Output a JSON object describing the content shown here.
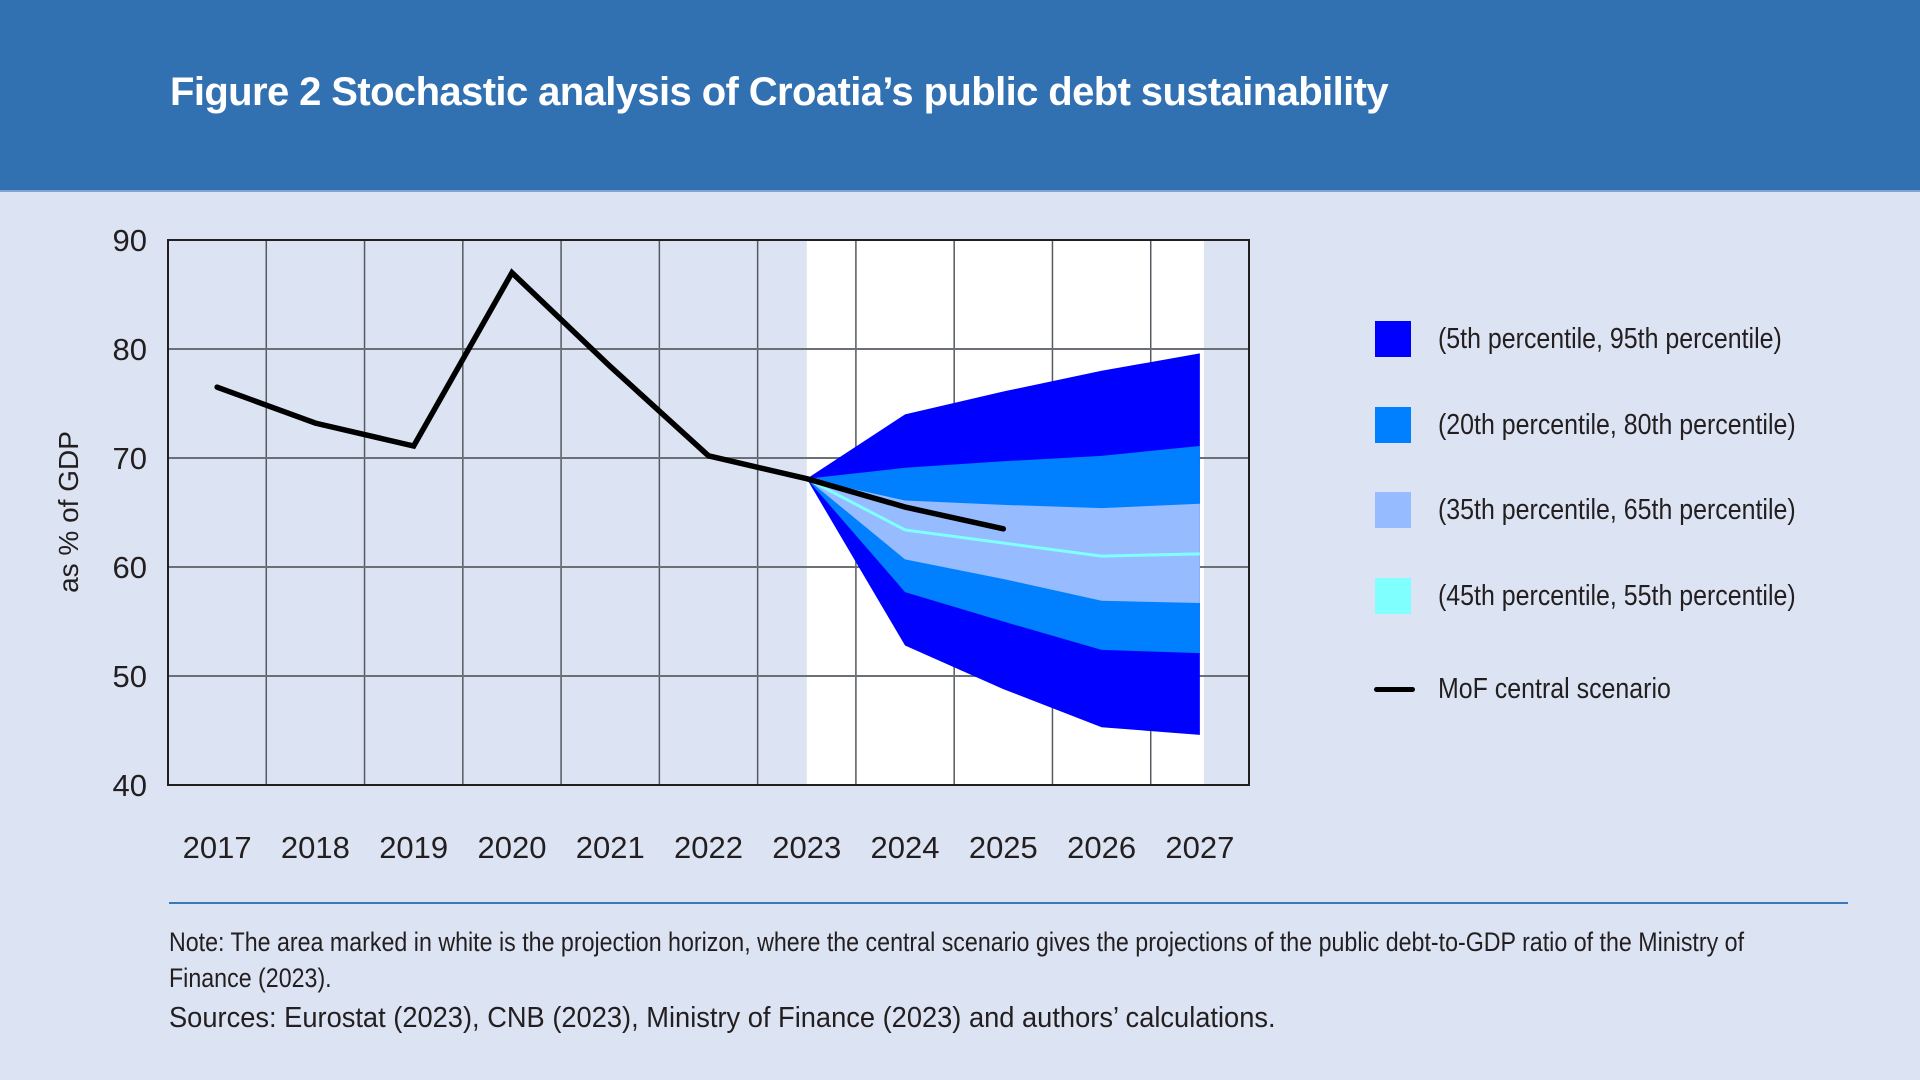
{
  "header": {
    "title": "Figure 2 Stochastic analysis of Croatia’s public debt sustainability"
  },
  "colors": {
    "header_bg": "#3170b1",
    "page_bg": "#dce3f2",
    "projection_bg": "#ffffff",
    "band_5_95": "#0000ff",
    "band_20_80": "#0080ff",
    "band_35_65": "#96bcff",
    "band_45_55": "#80ffff",
    "central": "#000000"
  },
  "chart_data": {
    "type": "area",
    "title": "Figure 2 Stochastic analysis of Croatia’s public debt sustainability",
    "xlabel": "",
    "ylabel": "as % of GDP",
    "ylim": [
      40,
      90
    ],
    "yticks": [
      90,
      80,
      70,
      60,
      50,
      40
    ],
    "categories": [
      "2017",
      "2018",
      "2019",
      "2020",
      "2021",
      "2022",
      "2023",
      "2024",
      "2025",
      "2026",
      "2027"
    ],
    "grid": true,
    "projection_horizon": [
      "2023",
      "2027"
    ],
    "legend_position": "right",
    "central_scenario": {
      "name": "MoF central scenario",
      "x": [
        "2017",
        "2018",
        "2019",
        "2020",
        "2021",
        "2022",
        "2023",
        "2024",
        "2025"
      ],
      "values": [
        76.5,
        73.2,
        71.1,
        87.0,
        78.4,
        70.2,
        68.1,
        65.5,
        63.5
      ]
    },
    "fan_x": [
      "2023",
      "2024",
      "2025",
      "2026",
      "2027"
    ],
    "percentiles": {
      "p5": [
        68.1,
        52.8,
        48.8,
        45.3,
        44.6
      ],
      "p20": [
        68.1,
        57.7,
        55.0,
        52.4,
        52.1
      ],
      "p35": [
        68.1,
        60.7,
        58.9,
        56.9,
        56.7
      ],
      "p45": [
        68.1,
        63.4,
        62.2,
        61.0,
        61.2
      ],
      "p55": [
        68.1,
        63.4,
        62.2,
        61.0,
        61.2
      ],
      "p65": [
        68.1,
        66.1,
        65.7,
        65.4,
        65.8
      ],
      "p80": [
        68.1,
        69.1,
        69.7,
        70.2,
        71.1
      ],
      "p95": [
        68.1,
        74.0,
        76.1,
        78.0,
        79.6
      ]
    },
    "series": [
      {
        "name": "(5th percentile, 95th percentile)",
        "lower": "p5",
        "upper": "p95",
        "color_key": "band_5_95"
      },
      {
        "name": "(20th percentile, 80th percentile)",
        "lower": "p20",
        "upper": "p80",
        "color_key": "band_20_80"
      },
      {
        "name": "(35th percentile, 65th percentile)",
        "lower": "p35",
        "upper": "p65",
        "color_key": "band_35_65"
      },
      {
        "name": "(45th percentile, 55th percentile)",
        "lower": "p45",
        "upper": "p55",
        "color_key": "band_45_55"
      }
    ]
  },
  "legend": {
    "items": [
      {
        "label": "(5th percentile, 95th percentile)",
        "type": "swatch",
        "color_key": "band_5_95"
      },
      {
        "label": "(20th percentile, 80th percentile)",
        "type": "swatch",
        "color_key": "band_20_80"
      },
      {
        "label": "(35th percentile, 65th percentile)",
        "type": "swatch",
        "color_key": "band_35_65"
      },
      {
        "label": "(45th percentile, 55th percentile)",
        "type": "swatch",
        "color_key": "band_45_55"
      },
      {
        "label": "MoF central scenario",
        "type": "line",
        "color_key": "central"
      }
    ]
  },
  "footer": {
    "note": "Note: The area marked in white is the projection horizon, where the central scenario gives the projections of the public debt-to-GDP ratio of the Ministry of Finance (2023).",
    "sources": "Sources: Eurostat (2023), CNB (2023), Ministry of Finance (2023) and authors’ calculations."
  }
}
